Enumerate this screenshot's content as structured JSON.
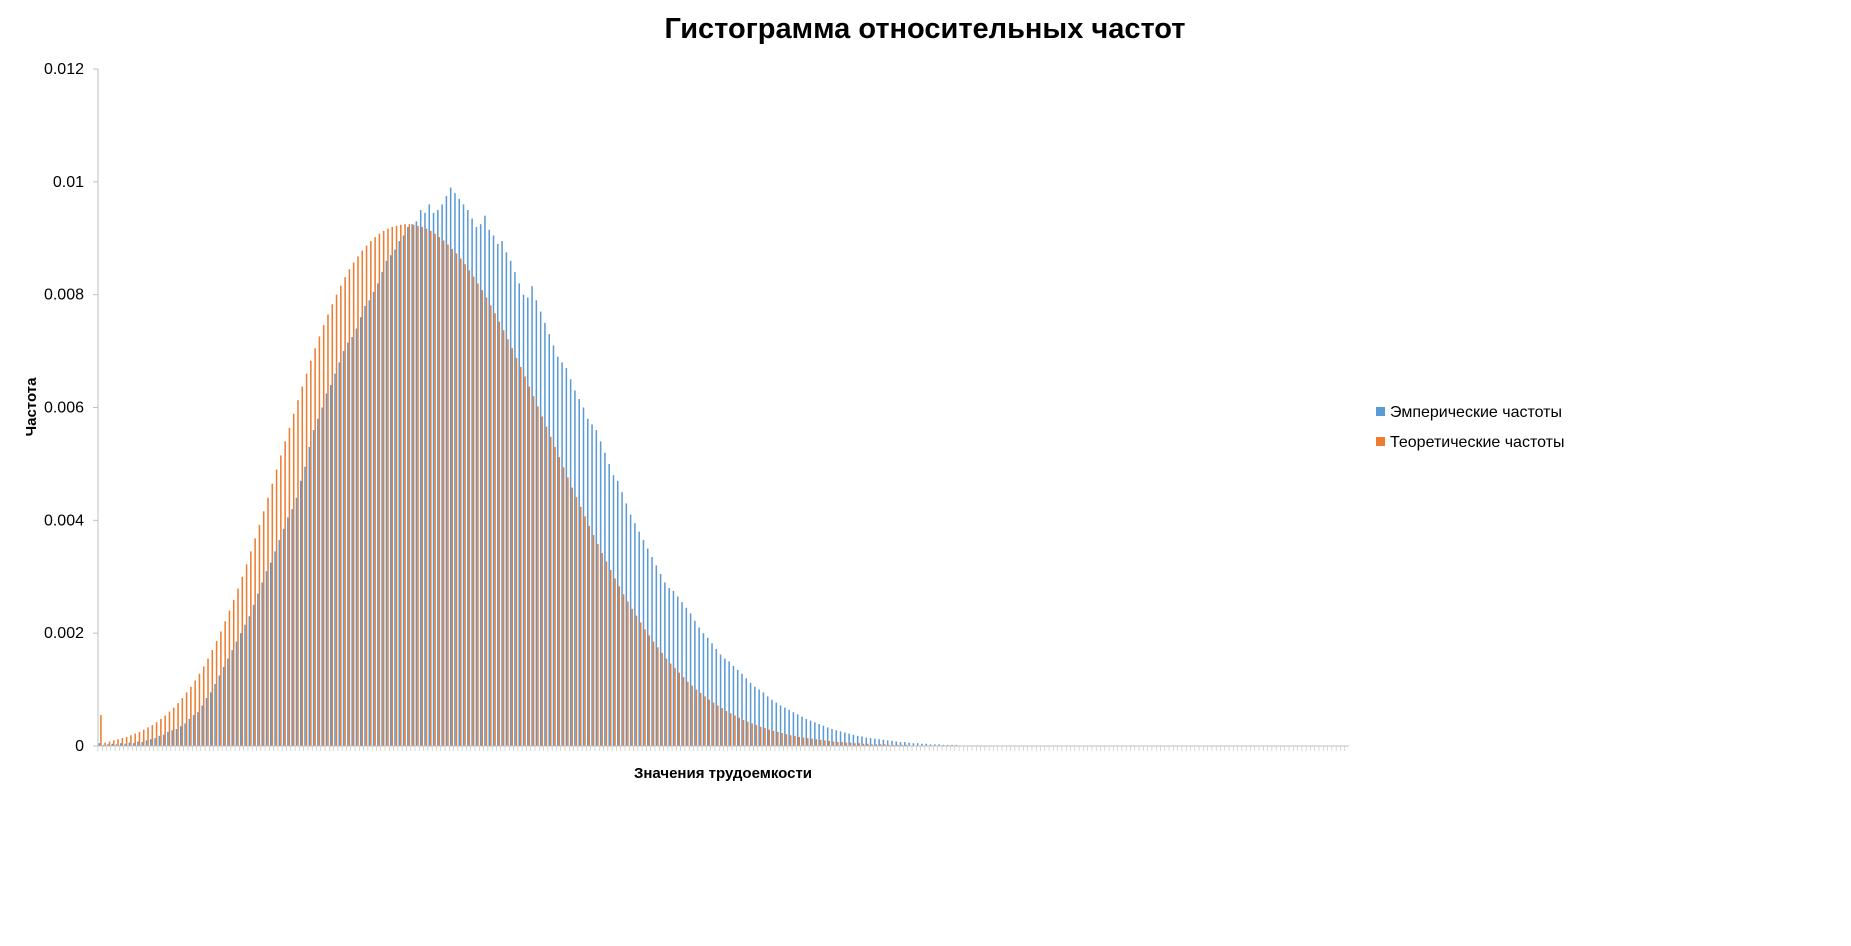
{
  "chart_data": {
    "type": "bar",
    "title": "Гистограмма относительных частот",
    "xlabel": "Значения трудоемкости",
    "ylabel": "Частота",
    "ylim": [
      0,
      0.012
    ],
    "yticks": [
      "0",
      "0.002",
      "0.004",
      "0.006",
      "0.008",
      "0.01",
      "0.012"
    ],
    "ytick_values": [
      0,
      0.002,
      0.004,
      0.006,
      0.008,
      0.01,
      0.012
    ],
    "legend_position": "right",
    "colors": {
      "Эмперические частоты": "#5B9BD5",
      "Теоретические частоты": "#ED7D31"
    },
    "series": [
      {
        "name": "Эмперические частоты",
        "values": [
          5e-05,
          2e-05,
          3e-05,
          4e-05,
          3e-05,
          5e-05,
          4e-05,
          6e-05,
          5e-05,
          8e-05,
          7e-05,
          0.0001,
          0.00012,
          0.00014,
          0.00018,
          0.0002,
          0.00025,
          0.00028,
          0.0003,
          0.00035,
          0.0004,
          0.00048,
          0.00055,
          0.0006,
          0.00072,
          0.00085,
          0.00095,
          0.0011,
          0.00125,
          0.0014,
          0.00155,
          0.0017,
          0.00185,
          0.002,
          0.00215,
          0.0023,
          0.0025,
          0.0027,
          0.0029,
          0.0031,
          0.00325,
          0.00345,
          0.00365,
          0.00385,
          0.00405,
          0.0042,
          0.0044,
          0.0047,
          0.00495,
          0.0053,
          0.0056,
          0.0058,
          0.006,
          0.00625,
          0.0064,
          0.0066,
          0.0068,
          0.007,
          0.00715,
          0.00725,
          0.0074,
          0.0076,
          0.0078,
          0.0079,
          0.00805,
          0.0082,
          0.0084,
          0.0086,
          0.0087,
          0.0088,
          0.00895,
          0.00905,
          0.0092,
          0.00925,
          0.0093,
          0.0095,
          0.00945,
          0.0096,
          0.00945,
          0.0095,
          0.0096,
          0.00975,
          0.0099,
          0.0098,
          0.0097,
          0.0096,
          0.0095,
          0.00935,
          0.0092,
          0.00925,
          0.0094,
          0.00915,
          0.00905,
          0.0089,
          0.00895,
          0.00875,
          0.0086,
          0.0084,
          0.0082,
          0.008,
          0.00795,
          0.00815,
          0.0079,
          0.0077,
          0.0075,
          0.0073,
          0.0071,
          0.0069,
          0.0068,
          0.0067,
          0.0065,
          0.0063,
          0.00615,
          0.006,
          0.0058,
          0.0057,
          0.0056,
          0.0054,
          0.0052,
          0.005,
          0.0048,
          0.0047,
          0.0045,
          0.0043,
          0.0041,
          0.00395,
          0.0038,
          0.00365,
          0.0035,
          0.00335,
          0.0032,
          0.00305,
          0.0029,
          0.0028,
          0.00275,
          0.00265,
          0.00255,
          0.00245,
          0.00235,
          0.00222,
          0.0021,
          0.002,
          0.00192,
          0.00182,
          0.00172,
          0.00162,
          0.00155,
          0.0015,
          0.00142,
          0.00135,
          0.00128,
          0.0012,
          0.00112,
          0.00105,
          0.001,
          0.00095,
          0.00088,
          0.00082,
          0.00077,
          0.00072,
          0.00068,
          0.00064,
          0.0006,
          0.00056,
          0.00052,
          0.00048,
          0.00045,
          0.00042,
          0.00039,
          0.00036,
          0.00033,
          0.0003,
          0.00028,
          0.00026,
          0.00024,
          0.00022,
          0.0002,
          0.00018,
          0.00017,
          0.00015,
          0.00014,
          0.00013,
          0.00012,
          0.00011,
          0.0001,
          9e-05,
          8e-05,
          7e-05,
          7e-05,
          6e-05,
          5e-05,
          5e-05,
          4e-05,
          4e-05,
          3e-05,
          3e-05,
          3e-05,
          2e-05,
          2e-05,
          2e-05,
          2e-05,
          1e-05,
          1e-05,
          1e-05,
          1e-05,
          1e-05,
          1e-05,
          1e-05,
          1e-05,
          0,
          0,
          0,
          0,
          0,
          0,
          0,
          0,
          0,
          0,
          0,
          0,
          0,
          0,
          0,
          0,
          0,
          0,
          0,
          0,
          0,
          0,
          0,
          0,
          0,
          0,
          0,
          0,
          0,
          0,
          0,
          0,
          0,
          0,
          0,
          0,
          0,
          0,
          0,
          0,
          0,
          0,
          0,
          0,
          0,
          0,
          0,
          0,
          0,
          0,
          0,
          0,
          0,
          0,
          0,
          0,
          0,
          0,
          0,
          0,
          0,
          0,
          0,
          0,
          0,
          0,
          0,
          0,
          0,
          0,
          0,
          0,
          0,
          0,
          0,
          0,
          0,
          0,
          0,
          0,
          0,
          0
        ]
      },
      {
        "name": "Теоретические частоты",
        "values": [
          0.00055,
          6e-05,
          8e-05,
          0.0001,
          0.00012,
          0.00014,
          0.00016,
          0.00019,
          0.00022,
          0.00025,
          0.00029,
          0.00033,
          0.00037,
          0.00042,
          0.00048,
          0.00054,
          0.00061,
          0.00068,
          0.00076,
          0.00085,
          0.00095,
          0.00105,
          0.00116,
          0.00128,
          0.00141,
          0.00155,
          0.0017,
          0.00186,
          0.00203,
          0.00221,
          0.0024,
          0.00259,
          0.00279,
          0.003,
          0.00322,
          0.00345,
          0.00368,
          0.00392,
          0.00416,
          0.0044,
          0.00465,
          0.0049,
          0.00515,
          0.0054,
          0.00564,
          0.00589,
          0.00613,
          0.00637,
          0.0066,
          0.00683,
          0.00705,
          0.00726,
          0.00746,
          0.00765,
          0.00783,
          0.008,
          0.00816,
          0.00831,
          0.00845,
          0.00857,
          0.00868,
          0.00878,
          0.00887,
          0.00895,
          0.00902,
          0.00908,
          0.00913,
          0.00917,
          0.0092,
          0.00922,
          0.00924,
          0.00925,
          0.00925,
          0.00924,
          0.00922,
          0.0092,
          0.00917,
          0.00913,
          0.00908,
          0.00902,
          0.00896,
          0.00889,
          0.00881,
          0.00873,
          0.00864,
          0.00854,
          0.00843,
          0.00832,
          0.0082,
          0.00808,
          0.00795,
          0.00781,
          0.00767,
          0.00752,
          0.00737,
          0.00721,
          0.00705,
          0.00688,
          0.00672,
          0.00655,
          0.00637,
          0.0062,
          0.00602,
          0.00584,
          0.00566,
          0.00548,
          0.0053,
          0.00512,
          0.00494,
          0.00476,
          0.00458,
          0.00441,
          0.00424,
          0.00407,
          0.0039,
          0.00374,
          0.00358,
          0.00342,
          0.00327,
          0.00312,
          0.00297,
          0.00283,
          0.00269,
          0.00256,
          0.00243,
          0.00231,
          0.00219,
          0.00207,
          0.00196,
          0.00185,
          0.00175,
          0.00165,
          0.00155,
          0.00146,
          0.00138,
          0.0013,
          0.00122,
          0.00114,
          0.00107,
          0.001,
          0.00094,
          0.00088,
          0.00082,
          0.00077,
          0.00072,
          0.00067,
          0.00062,
          0.00058,
          0.00054,
          0.0005,
          0.00046,
          0.00043,
          0.0004,
          0.00037,
          0.00034,
          0.00032,
          0.00029,
          0.00027,
          0.00025,
          0.00023,
          0.00021,
          0.00019,
          0.00018,
          0.00016,
          0.00015,
          0.00014,
          0.00013,
          0.00012,
          0.00011,
          0.0001,
          9e-05,
          8e-05,
          7e-05,
          7e-05,
          6e-05,
          6e-05,
          5e-05,
          5e-05,
          4e-05,
          4e-05,
          3e-05,
          3e-05,
          3e-05,
          3e-05,
          2e-05,
          2e-05,
          2e-05,
          2e-05,
          2e-05,
          1e-05,
          1e-05,
          1e-05,
          1e-05,
          1e-05,
          1e-05,
          1e-05,
          1e-05,
          1e-05,
          0,
          0,
          0,
          0,
          0,
          0,
          0,
          0,
          0,
          0,
          0,
          0,
          0,
          0,
          0,
          0,
          0,
          0,
          0,
          0,
          0,
          0,
          0,
          0,
          0,
          0,
          0,
          0,
          0,
          0,
          0,
          0,
          0,
          0,
          0,
          0,
          0,
          0,
          0,
          0,
          0,
          0,
          0,
          0,
          0,
          0,
          0,
          0,
          0,
          0,
          0,
          0,
          0,
          0,
          0,
          0,
          0,
          0,
          0,
          0,
          0,
          0,
          0,
          0,
          0,
          0,
          0,
          0,
          0,
          0,
          0,
          0,
          0,
          0,
          0,
          0,
          0,
          0,
          0,
          0,
          0,
          0,
          0,
          0,
          0,
          0,
          0,
          0,
          0,
          0,
          0,
          0,
          0,
          0
        ]
      }
    ]
  }
}
